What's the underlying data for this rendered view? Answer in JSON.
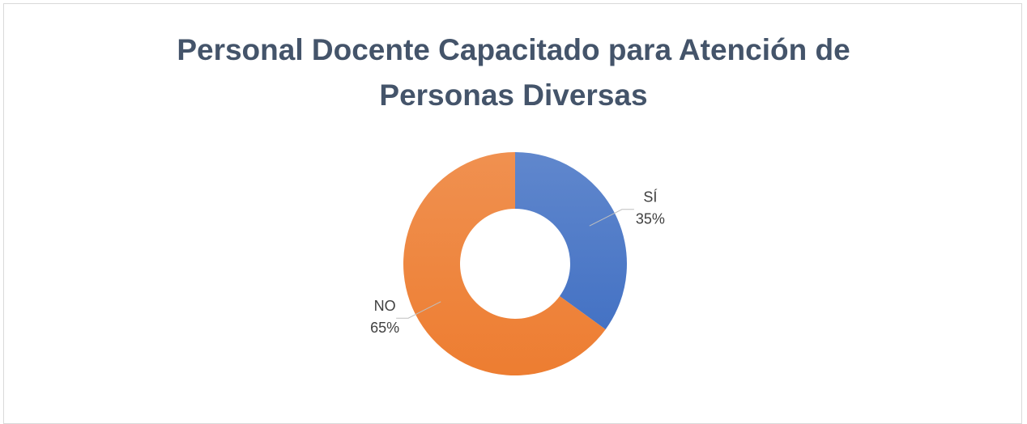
{
  "chart_data": {
    "type": "donut",
    "title": "Personal Docente Capacitado para Atención de Personas Diversas",
    "categories": [
      "SÍ",
      "NO"
    ],
    "values": [
      35,
      65
    ],
    "value_labels": [
      "35%",
      "65%"
    ],
    "colors": [
      "#4472c4",
      "#ed7d31"
    ]
  }
}
